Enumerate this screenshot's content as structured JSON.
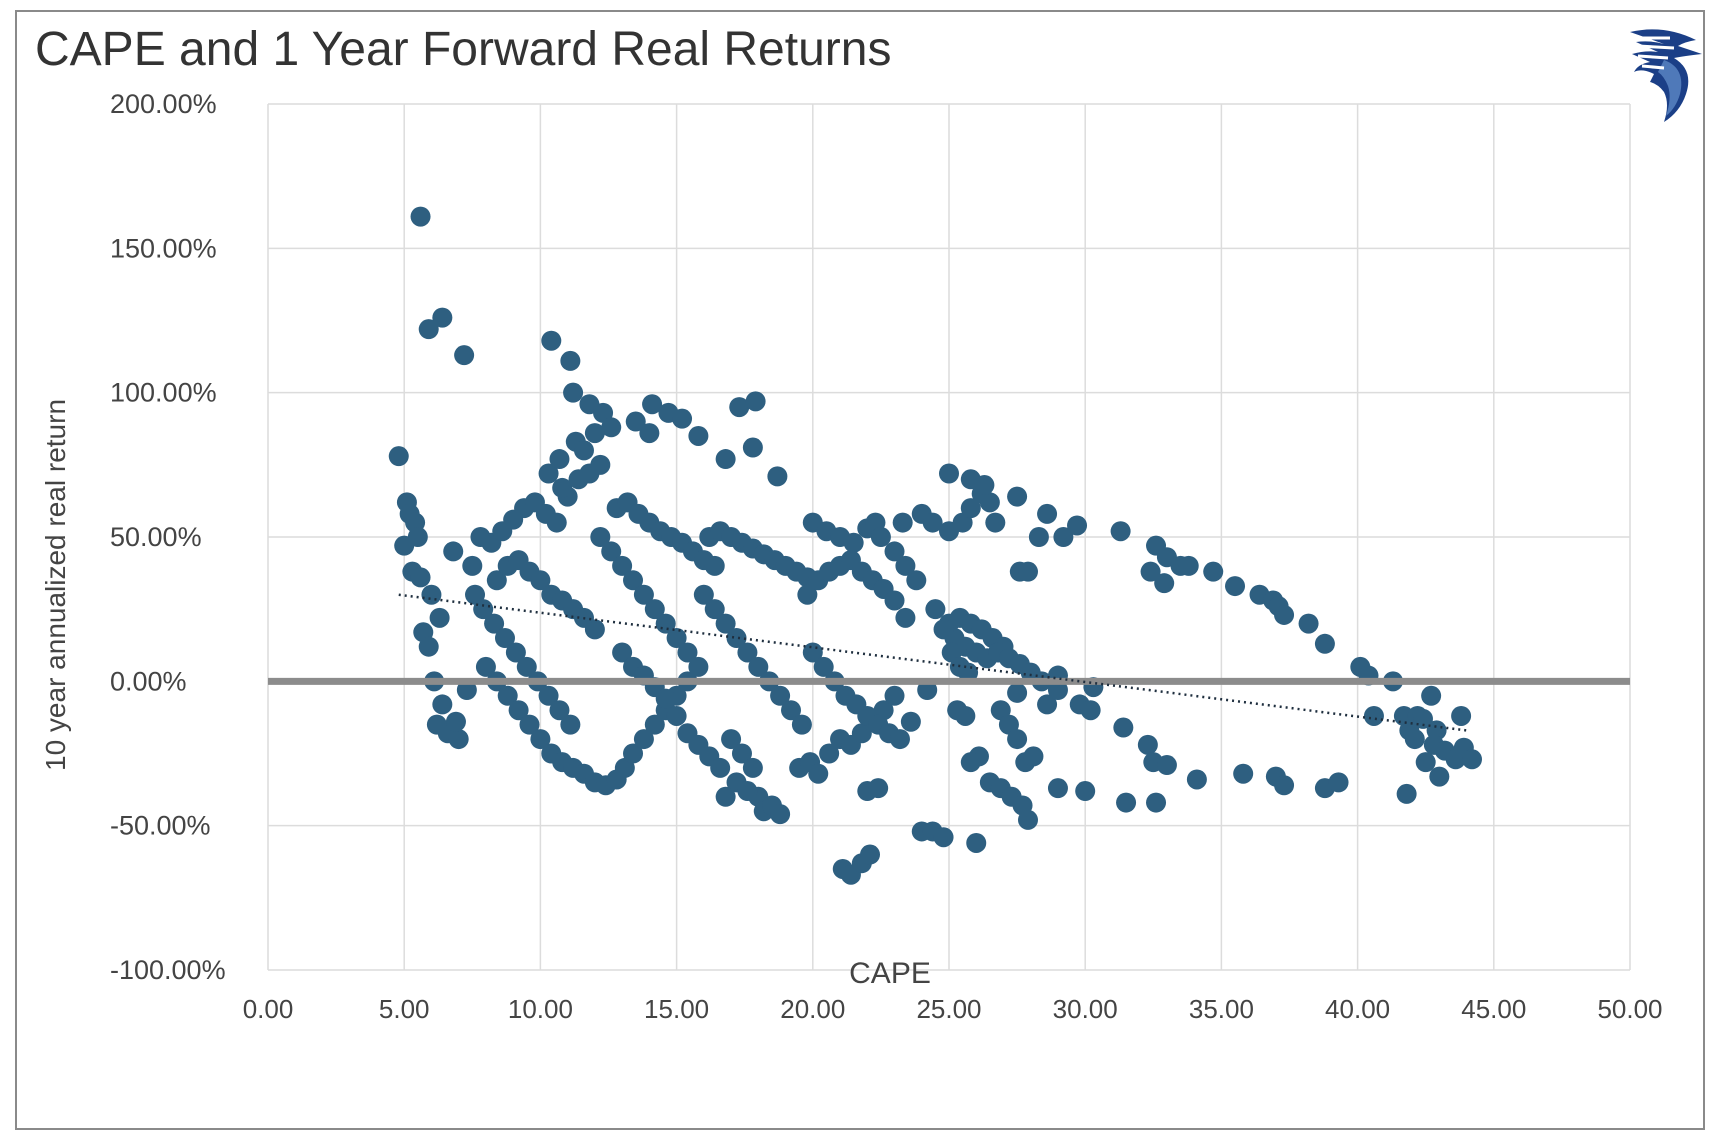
{
  "chart_data": {
    "type": "scatter",
    "title": "CAPE and 1 Year Forward Real Returns",
    "xlabel": "CAPE",
    "ylabel": "10 year annualized real return",
    "xlim": [
      0,
      50
    ],
    "ylim": [
      -100,
      200
    ],
    "x_ticks": [
      "0.00",
      "5.00",
      "10.00",
      "15.00",
      "20.00",
      "25.00",
      "30.00",
      "35.00",
      "40.00",
      "45.00",
      "50.00"
    ],
    "y_ticks": [
      "-100.00%",
      "-50.00%",
      "0.00%",
      "50.00%",
      "100.00%",
      "150.00%",
      "200.00%"
    ],
    "grid": true,
    "legend": "none",
    "marker_color": "#2e5f80",
    "trendline": {
      "style": "dotted",
      "from": [
        4.8,
        30
      ],
      "to": [
        44,
        -17
      ]
    },
    "zero_line_color": "#8c8c8c",
    "series": [
      {
        "points": [
          [
            5.6,
            161
          ],
          [
            6.4,
            126
          ],
          [
            5.9,
            122
          ],
          [
            7.2,
            113
          ],
          [
            10.4,
            118
          ],
          [
            11.1,
            111
          ],
          [
            11.2,
            100
          ],
          [
            11.8,
            96
          ],
          [
            12.3,
            93
          ],
          [
            12.6,
            88
          ],
          [
            13.5,
            90
          ],
          [
            14.0,
            86
          ],
          [
            14.1,
            96
          ],
          [
            14.7,
            93
          ],
          [
            15.2,
            91
          ],
          [
            15.8,
            85
          ],
          [
            17.3,
            95
          ],
          [
            17.9,
            97
          ],
          [
            17.8,
            81
          ],
          [
            16.8,
            77
          ],
          [
            18.7,
            71
          ],
          [
            4.8,
            78
          ],
          [
            5.1,
            62
          ],
          [
            5.2,
            58
          ],
          [
            5.4,
            55
          ],
          [
            5.5,
            50
          ],
          [
            5.0,
            47
          ],
          [
            5.3,
            38
          ],
          [
            5.6,
            36
          ],
          [
            6.0,
            30
          ],
          [
            5.7,
            17
          ],
          [
            5.9,
            12
          ],
          [
            6.3,
            22
          ],
          [
            6.1,
            0
          ],
          [
            6.4,
            -8
          ],
          [
            6.2,
            -15
          ],
          [
            6.6,
            -18
          ],
          [
            7.0,
            -20
          ],
          [
            6.9,
            -14
          ],
          [
            7.3,
            -3
          ],
          [
            6.8,
            45
          ],
          [
            7.5,
            40
          ],
          [
            7.8,
            50
          ],
          [
            8.2,
            48
          ],
          [
            8.6,
            52
          ],
          [
            9.0,
            56
          ],
          [
            9.4,
            60
          ],
          [
            9.8,
            62
          ],
          [
            10.2,
            58
          ],
          [
            10.6,
            55
          ],
          [
            11.0,
            64
          ],
          [
            11.4,
            70
          ],
          [
            11.8,
            72
          ],
          [
            12.2,
            75
          ],
          [
            10.3,
            72
          ],
          [
            10.7,
            77
          ],
          [
            11.3,
            83
          ],
          [
            11.6,
            80
          ],
          [
            12.0,
            86
          ],
          [
            10.8,
            67
          ],
          [
            7.6,
            30
          ],
          [
            7.9,
            25
          ],
          [
            8.3,
            20
          ],
          [
            8.7,
            15
          ],
          [
            9.1,
            10
          ],
          [
            9.5,
            5
          ],
          [
            9.9,
            0
          ],
          [
            10.3,
            -5
          ],
          [
            10.7,
            -10
          ],
          [
            11.1,
            -15
          ],
          [
            8.4,
            35
          ],
          [
            8.8,
            40
          ],
          [
            9.2,
            42
          ],
          [
            9.6,
            38
          ],
          [
            10.0,
            35
          ],
          [
            10.4,
            30
          ],
          [
            10.8,
            28
          ],
          [
            11.2,
            25
          ],
          [
            11.6,
            22
          ],
          [
            12.0,
            18
          ],
          [
            8.0,
            5
          ],
          [
            8.4,
            0
          ],
          [
            8.8,
            -5
          ],
          [
            9.2,
            -10
          ],
          [
            9.6,
            -15
          ],
          [
            10.0,
            -20
          ],
          [
            10.4,
            -25
          ],
          [
            10.8,
            -28
          ],
          [
            11.2,
            -30
          ],
          [
            11.6,
            -32
          ],
          [
            12.0,
            -35
          ],
          [
            12.4,
            -36
          ],
          [
            12.8,
            -34
          ],
          [
            13.1,
            -30
          ],
          [
            13.4,
            -25
          ],
          [
            13.8,
            -20
          ],
          [
            14.2,
            -15
          ],
          [
            14.6,
            -10
          ],
          [
            15.0,
            -5
          ],
          [
            15.4,
            0
          ],
          [
            12.2,
            50
          ],
          [
            12.6,
            45
          ],
          [
            13.0,
            40
          ],
          [
            13.4,
            35
          ],
          [
            13.8,
            30
          ],
          [
            14.2,
            25
          ],
          [
            14.6,
            20
          ],
          [
            15.0,
            15
          ],
          [
            15.4,
            10
          ],
          [
            15.8,
            5
          ],
          [
            12.8,
            60
          ],
          [
            13.2,
            62
          ],
          [
            13.6,
            58
          ],
          [
            14.0,
            55
          ],
          [
            14.4,
            52
          ],
          [
            14.8,
            50
          ],
          [
            15.2,
            48
          ],
          [
            15.6,
            45
          ],
          [
            16.0,
            42
          ],
          [
            16.4,
            40
          ],
          [
            13.0,
            10
          ],
          [
            13.4,
            5
          ],
          [
            13.8,
            2
          ],
          [
            14.2,
            -2
          ],
          [
            14.6,
            -6
          ],
          [
            15.0,
            -12
          ],
          [
            15.4,
            -18
          ],
          [
            15.8,
            -22
          ],
          [
            16.2,
            -26
          ],
          [
            16.6,
            -30
          ],
          [
            16.0,
            30
          ],
          [
            16.4,
            25
          ],
          [
            16.8,
            20
          ],
          [
            17.2,
            15
          ],
          [
            17.6,
            10
          ],
          [
            18.0,
            5
          ],
          [
            18.4,
            0
          ],
          [
            18.8,
            -5
          ],
          [
            19.2,
            -10
          ],
          [
            19.6,
            -15
          ],
          [
            16.2,
            50
          ],
          [
            16.6,
            52
          ],
          [
            17.0,
            50
          ],
          [
            17.4,
            48
          ],
          [
            17.8,
            46
          ],
          [
            18.2,
            44
          ],
          [
            18.6,
            42
          ],
          [
            19.0,
            40
          ],
          [
            19.4,
            38
          ],
          [
            19.8,
            36
          ],
          [
            17.0,
            -20
          ],
          [
            17.4,
            -25
          ],
          [
            17.8,
            -30
          ],
          [
            18.0,
            -40
          ],
          [
            18.2,
            -45
          ],
          [
            18.5,
            -43
          ],
          [
            18.8,
            -46
          ],
          [
            17.2,
            -35
          ],
          [
            16.8,
            -40
          ],
          [
            17.6,
            -38
          ],
          [
            19.5,
            -30
          ],
          [
            19.9,
            -28
          ],
          [
            20.2,
            -32
          ],
          [
            20.6,
            -25
          ],
          [
            21.0,
            -20
          ],
          [
            21.4,
            -22
          ],
          [
            21.8,
            -18
          ],
          [
            22.2,
            -14
          ],
          [
            22.6,
            -10
          ],
          [
            23.0,
            -5
          ],
          [
            19.8,
            30
          ],
          [
            20.2,
            35
          ],
          [
            20.6,
            38
          ],
          [
            21.0,
            40
          ],
          [
            21.4,
            42
          ],
          [
            21.8,
            38
          ],
          [
            22.2,
            35
          ],
          [
            22.6,
            32
          ],
          [
            23.0,
            28
          ],
          [
            23.4,
            22
          ],
          [
            20.0,
            10
          ],
          [
            20.4,
            5
          ],
          [
            20.8,
            0
          ],
          [
            21.2,
            -5
          ],
          [
            21.6,
            -8
          ],
          [
            22.0,
            -12
          ],
          [
            22.4,
            -15
          ],
          [
            22.8,
            -18
          ],
          [
            23.2,
            -20
          ],
          [
            23.6,
            -14
          ],
          [
            20.0,
            55
          ],
          [
            20.5,
            52
          ],
          [
            21.0,
            50
          ],
          [
            21.5,
            48
          ],
          [
            22.0,
            53
          ],
          [
            22.3,
            55
          ],
          [
            22.5,
            50
          ],
          [
            23.0,
            45
          ],
          [
            23.4,
            40
          ],
          [
            23.8,
            35
          ],
          [
            21.1,
            -65
          ],
          [
            21.4,
            -67
          ],
          [
            21.8,
            -63
          ],
          [
            22.1,
            -60
          ],
          [
            22.0,
            -38
          ],
          [
            22.4,
            -37
          ],
          [
            24.0,
            -52
          ],
          [
            24.4,
            -52
          ],
          [
            24.8,
            -54
          ],
          [
            26.0,
            -56
          ],
          [
            23.3,
            55
          ],
          [
            24.0,
            58
          ],
          [
            24.4,
            55
          ],
          [
            25.0,
            52
          ],
          [
            25.5,
            55
          ],
          [
            25.8,
            60
          ],
          [
            26.2,
            65
          ],
          [
            26.5,
            62
          ],
          [
            25.0,
            72
          ],
          [
            25.8,
            70
          ],
          [
            26.3,
            68
          ],
          [
            26.7,
            55
          ],
          [
            27.5,
            64
          ],
          [
            27.6,
            38
          ],
          [
            27.9,
            38
          ],
          [
            28.6,
            58
          ],
          [
            28.3,
            50
          ],
          [
            29.2,
            50
          ],
          [
            29.7,
            54
          ],
          [
            31.3,
            52
          ],
          [
            25.0,
            20
          ],
          [
            25.4,
            22
          ],
          [
            25.8,
            20
          ],
          [
            26.2,
            18
          ],
          [
            26.6,
            15
          ],
          [
            27.0,
            12
          ],
          [
            25.2,
            15
          ],
          [
            25.6,
            12
          ],
          [
            26.0,
            10
          ],
          [
            26.4,
            8
          ],
          [
            24.5,
            25
          ],
          [
            24.8,
            18
          ],
          [
            25.1,
            10
          ],
          [
            25.4,
            5
          ],
          [
            25.7,
            3
          ],
          [
            26.8,
            10
          ],
          [
            27.2,
            8
          ],
          [
            27.6,
            6
          ],
          [
            28.0,
            3
          ],
          [
            28.4,
            0
          ],
          [
            24.2,
            -3
          ],
          [
            25.3,
            -10
          ],
          [
            25.6,
            -12
          ],
          [
            26.1,
            -26
          ],
          [
            25.8,
            -28
          ],
          [
            26.5,
            -35
          ],
          [
            26.9,
            -37
          ],
          [
            27.3,
            -40
          ],
          [
            27.7,
            -43
          ],
          [
            27.9,
            -48
          ],
          [
            26.9,
            -10
          ],
          [
            27.2,
            -15
          ],
          [
            27.5,
            -20
          ],
          [
            27.8,
            -28
          ],
          [
            28.1,
            -26
          ],
          [
            27.5,
            -4
          ],
          [
            28.6,
            -8
          ],
          [
            29.0,
            -3
          ],
          [
            29.0,
            2
          ],
          [
            29.8,
            -8
          ],
          [
            30.2,
            -10
          ],
          [
            30.3,
            -2
          ],
          [
            31.4,
            -16
          ],
          [
            32.3,
            -22
          ],
          [
            32.5,
            -28
          ],
          [
            33.0,
            -29
          ],
          [
            29.0,
            -37
          ],
          [
            30.0,
            -38
          ],
          [
            31.5,
            -42
          ],
          [
            32.6,
            -42
          ],
          [
            34.1,
            -34
          ],
          [
            35.8,
            -32
          ],
          [
            37.0,
            -33
          ],
          [
            37.3,
            -36
          ],
          [
            38.8,
            -37
          ],
          [
            39.3,
            -35
          ],
          [
            41.8,
            -39
          ],
          [
            32.6,
            47
          ],
          [
            33.0,
            43
          ],
          [
            32.4,
            38
          ],
          [
            32.9,
            34
          ],
          [
            33.5,
            40
          ],
          [
            33.8,
            40
          ],
          [
            34.7,
            38
          ],
          [
            35.5,
            33
          ],
          [
            36.4,
            30
          ],
          [
            36.9,
            28
          ],
          [
            37.1,
            26
          ],
          [
            37.3,
            23
          ],
          [
            38.2,
            20
          ],
          [
            38.8,
            13
          ],
          [
            40.1,
            5
          ],
          [
            40.4,
            2
          ],
          [
            41.3,
            0
          ],
          [
            40.6,
            -12
          ],
          [
            41.7,
            -12
          ],
          [
            42.2,
            -12
          ],
          [
            42.7,
            -5
          ],
          [
            42.4,
            -13
          ],
          [
            42.9,
            -17
          ],
          [
            42.1,
            -20
          ],
          [
            42.8,
            -22
          ],
          [
            43.2,
            -24
          ],
          [
            43.6,
            -27
          ],
          [
            43.9,
            -23
          ],
          [
            44.2,
            -27
          ],
          [
            43.0,
            -33
          ],
          [
            43.8,
            -12
          ],
          [
            42.5,
            -28
          ],
          [
            41.9,
            -17
          ]
        ]
      }
    ]
  },
  "logo": {
    "name": "eagle-logo",
    "colors": [
      "#1b3f87",
      "#4f79b9",
      "#0f2a63"
    ]
  }
}
